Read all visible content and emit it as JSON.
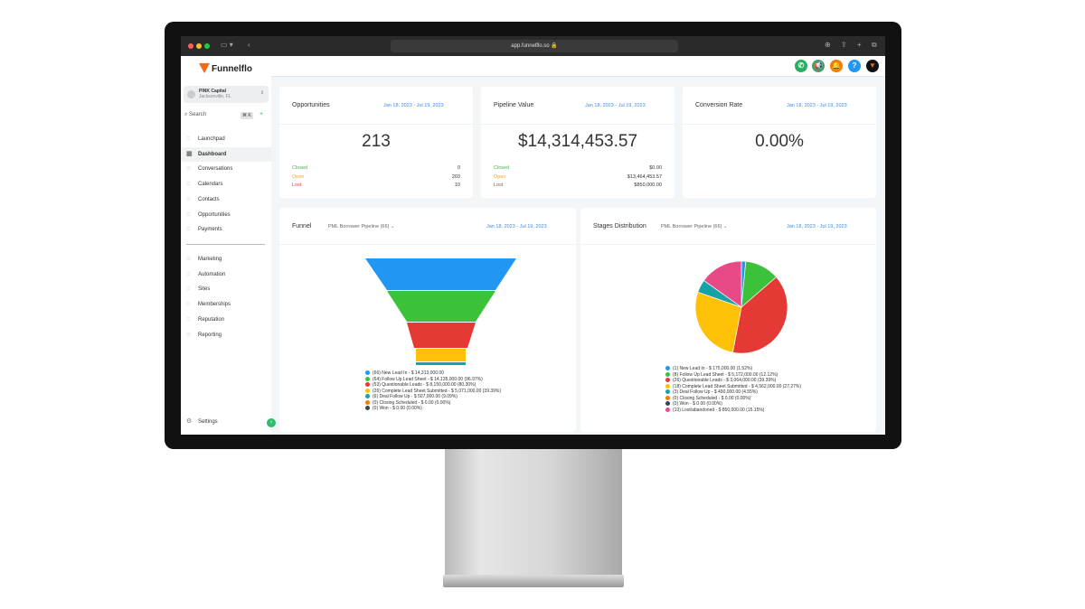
{
  "browser": {
    "url": "app.funnelflo.so"
  },
  "brand": {
    "name": "Funnelflo",
    "accent": "#f26b1d"
  },
  "account": {
    "name": "PINK Capital",
    "location": "Jacksonville, FL"
  },
  "search": {
    "label": "Search",
    "shortcut": "⌘ K"
  },
  "sidebar": {
    "items": [
      {
        "label": "Launchpad",
        "icon": "rocket-icon"
      },
      {
        "label": "Dashboard",
        "icon": "grid-icon"
      },
      {
        "label": "Conversations",
        "icon": "chat-icon"
      },
      {
        "label": "Calendars",
        "icon": "calendar-icon"
      },
      {
        "label": "Contacts",
        "icon": "contacts-icon"
      },
      {
        "label": "Opportunities",
        "icon": "filter-icon"
      },
      {
        "label": "Payments",
        "icon": "payments-icon"
      }
    ],
    "items2": [
      {
        "label": "Marketing",
        "icon": "send-icon"
      },
      {
        "label": "Automation",
        "icon": "play-icon"
      },
      {
        "label": "Sites",
        "icon": "sites-icon"
      },
      {
        "label": "Memberships",
        "icon": "award-icon"
      },
      {
        "label": "Reputation",
        "icon": "star-icon"
      },
      {
        "label": "Reporting",
        "icon": "trend-icon"
      }
    ],
    "settings": "Settings"
  },
  "cards": [
    {
      "title": "Opportunities",
      "date": "Jan 18, 2023 - Jul 19, 2023",
      "value": "213",
      "rows": [
        {
          "label": "Closed",
          "value": "0",
          "color": "#4caf50"
        },
        {
          "label": "Open",
          "value": "203",
          "color": "#f5a623"
        },
        {
          "label": "Lost",
          "value": "10",
          "color": "#e53935"
        }
      ]
    },
    {
      "title": "Pipeline Value",
      "date": "Jan 18, 2023 - Jul 19, 2023",
      "value": "$14,314,453.57",
      "rows": [
        {
          "label": "Closed",
          "value": "$0.00",
          "color": "#4caf50"
        },
        {
          "label": "Open",
          "value": "$13,464,453.57",
          "color": "#f5a623"
        },
        {
          "label": "Lost",
          "value": "$850,000.00",
          "color": "#e53935"
        }
      ]
    },
    {
      "title": "Conversion Rate",
      "date": "Jan 18, 2023 - Jul 19, 2023",
      "value": "0.00%"
    }
  ],
  "funnel": {
    "title": "Funnel",
    "pipeline": "PML Borrower Pipeline (66)",
    "date": "Jan 18, 2023 - Jul 19, 2023",
    "legend": [
      {
        "text": "(66) New Lead In - $ 14,313,000.00",
        "color": "#2196f3"
      },
      {
        "text": "(64) Follow Up Lead Sheet - $ 14,135,000.00 (96.97%)",
        "color": "#3cc13b"
      },
      {
        "text": "(53) Questionable Leads - $ 8,150,000.00 (80.30%)",
        "color": "#e53935"
      },
      {
        "text": "(26) Complete Lead Sheet Submitted - $ 5,071,000.00 (39.39%)",
        "color": "#ffc107"
      },
      {
        "text": "(6) Deal Follow Up - $ 507,000.00 (9.09%)",
        "color": "#17a2a8"
      },
      {
        "text": "(0) Closing Scheduled - $ 0.00 (0.00%)",
        "color": "#f57c00"
      },
      {
        "text": "(0) Won - $ 0.00 (0.00%)",
        "color": "#37474f"
      }
    ]
  },
  "stages": {
    "title": "Stages Distribution",
    "pipeline": "PML Borrower Pipeline (66)",
    "date": "Jan 18, 2023 - Jul 19, 2023",
    "legend": [
      {
        "text": "(1) New Lead In - $ 175,000.00 (1.52%)",
        "color": "#2196f3"
      },
      {
        "text": "(8) Follow Up Lead Sheet - $ 5,172,000.00 (12.12%)",
        "color": "#3cc13b"
      },
      {
        "text": "(26) Questionable Leads - $ 3,064,000.00 (39.39%)",
        "color": "#e53935"
      },
      {
        "text": "(18) Complete Lead Sheet Submitted - $ 4,562,000.00 (27.27%)",
        "color": "#ffc107"
      },
      {
        "text": "(3) Deal Follow Up - $ 490,000.00 (4.55%)",
        "color": "#17a2a8"
      },
      {
        "text": "(0) Closing Scheduled - $ 0.00 (0.00%)",
        "color": "#f57c00"
      },
      {
        "text": "(0) Won - $ 0.00 (0.00%)",
        "color": "#37474f"
      },
      {
        "text": "(10) Lost/abandoned - $ 850,000.00 (15.15%)",
        "color": "#e84a88"
      }
    ]
  },
  "chart_data": {
    "type": "pie",
    "categories": [
      "New Lead In",
      "Follow Up Lead Sheet",
      "Questionable Leads",
      "Complete Lead Sheet Submitted",
      "Deal Follow Up",
      "Closing Scheduled",
      "Won",
      "Lost/abandoned"
    ],
    "values": [
      1.52,
      12.12,
      39.39,
      27.27,
      4.55,
      0,
      0,
      15.15
    ],
    "colors": [
      "#2196f3",
      "#3cc13b",
      "#e53935",
      "#ffc107",
      "#17a2a8",
      "#f57c00",
      "#37474f",
      "#e84a88"
    ]
  }
}
